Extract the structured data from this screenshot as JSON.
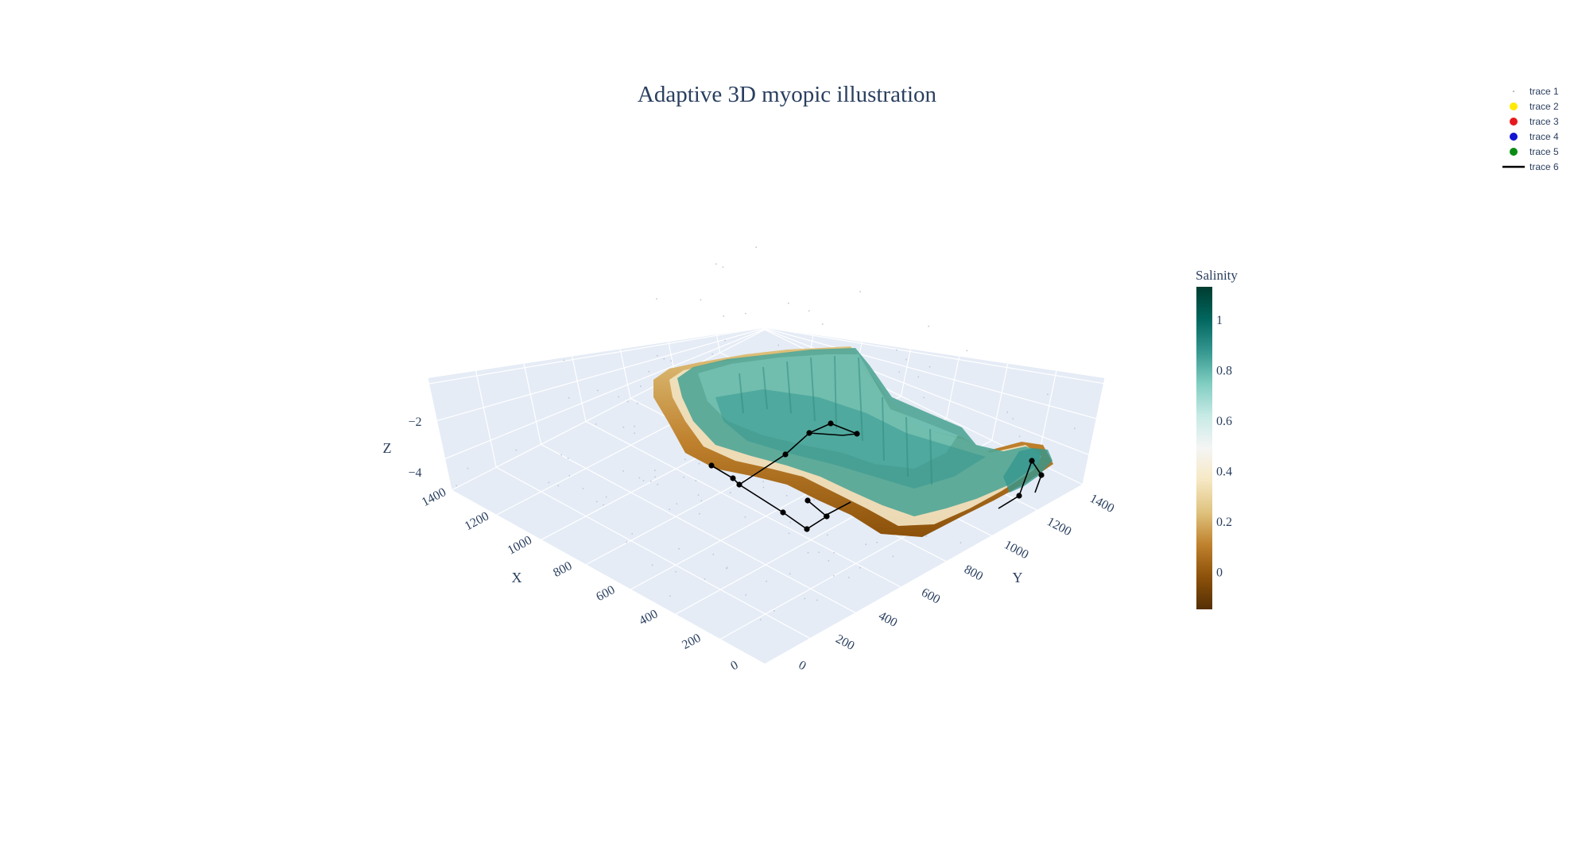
{
  "chart_data": {
    "type": "3d-volume",
    "title": "Adaptive 3D myopic illustration",
    "x_axis": {
      "title": "X",
      "ticks": [
        "0",
        "200",
        "400",
        "600",
        "800",
        "1000",
        "1200",
        "1400"
      ]
    },
    "y_axis": {
      "title": "Y",
      "ticks": [
        "0",
        "200",
        "400",
        "600",
        "800",
        "1000",
        "1200",
        "1400"
      ]
    },
    "z_axis": {
      "title": "Z",
      "ticks": [
        "−4",
        "−2"
      ]
    },
    "colorbar": {
      "title": "Salinity",
      "ticks": [
        "0",
        "0.2",
        "0.4",
        "0.6",
        "0.8",
        "1"
      ],
      "range": [
        -0.15,
        1.13
      ],
      "colorscale": [
        "#543005",
        "#8c510a",
        "#bf812d",
        "#dfc27d",
        "#f6e8c3",
        "#f5f5f5",
        "#c7eae5",
        "#80cdc1",
        "#35978f",
        "#01665e",
        "#003c30"
      ]
    },
    "legend": {
      "placement": "top-right",
      "entries": [
        {
          "name": "trace 1",
          "symbol": "dot",
          "color": "#bdbdbd"
        },
        {
          "name": "trace 2",
          "symbol": "circle",
          "color": "#ffea00"
        },
        {
          "name": "trace 3",
          "symbol": "circle",
          "color": "#e6191e"
        },
        {
          "name": "trace 4",
          "symbol": "circle",
          "color": "#1414d2"
        },
        {
          "name": "trace 5",
          "symbol": "circle",
          "color": "#0a8c14"
        },
        {
          "name": "trace 6",
          "symbol": "line",
          "color": "#000000"
        }
      ]
    },
    "scene": {
      "background": "#e5ecf6",
      "grid": true
    }
  }
}
